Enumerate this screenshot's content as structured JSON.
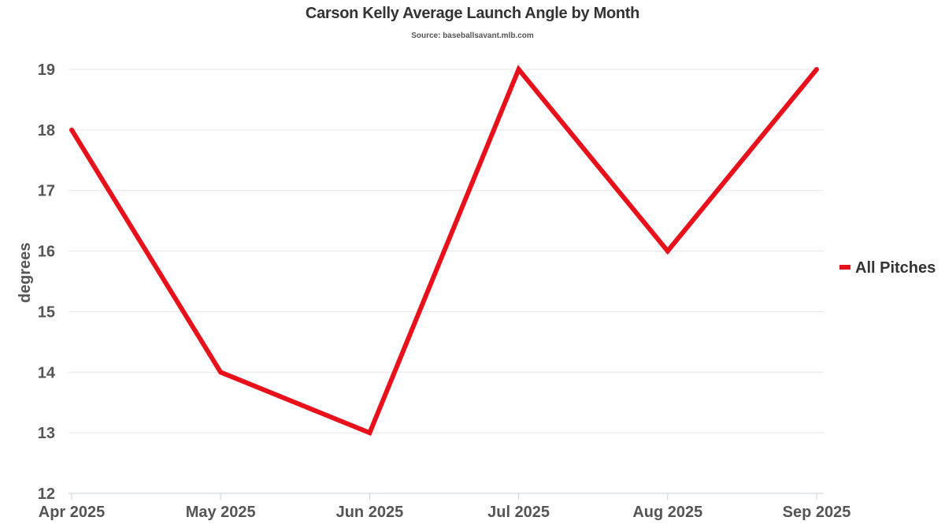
{
  "chart_data": {
    "type": "line",
    "title": "Carson Kelly Average Launch Angle by Month",
    "subtitle": "Source: baseballsavant.mlb.com",
    "xlabel": "",
    "ylabel": "degrees",
    "categories": [
      "Apr 2025",
      "May 2025",
      "Jun 2025",
      "Jul 2025",
      "Aug 2025",
      "Sep 2025"
    ],
    "series": [
      {
        "name": "All Pitches",
        "values": [
          18,
          14,
          13,
          19,
          16,
          19
        ],
        "color": "#e8111b"
      }
    ],
    "ylim": [
      12,
      19
    ],
    "yticks": [
      12,
      13,
      14,
      15,
      16,
      17,
      18,
      19
    ],
    "grid": true,
    "legend_position": "right"
  }
}
